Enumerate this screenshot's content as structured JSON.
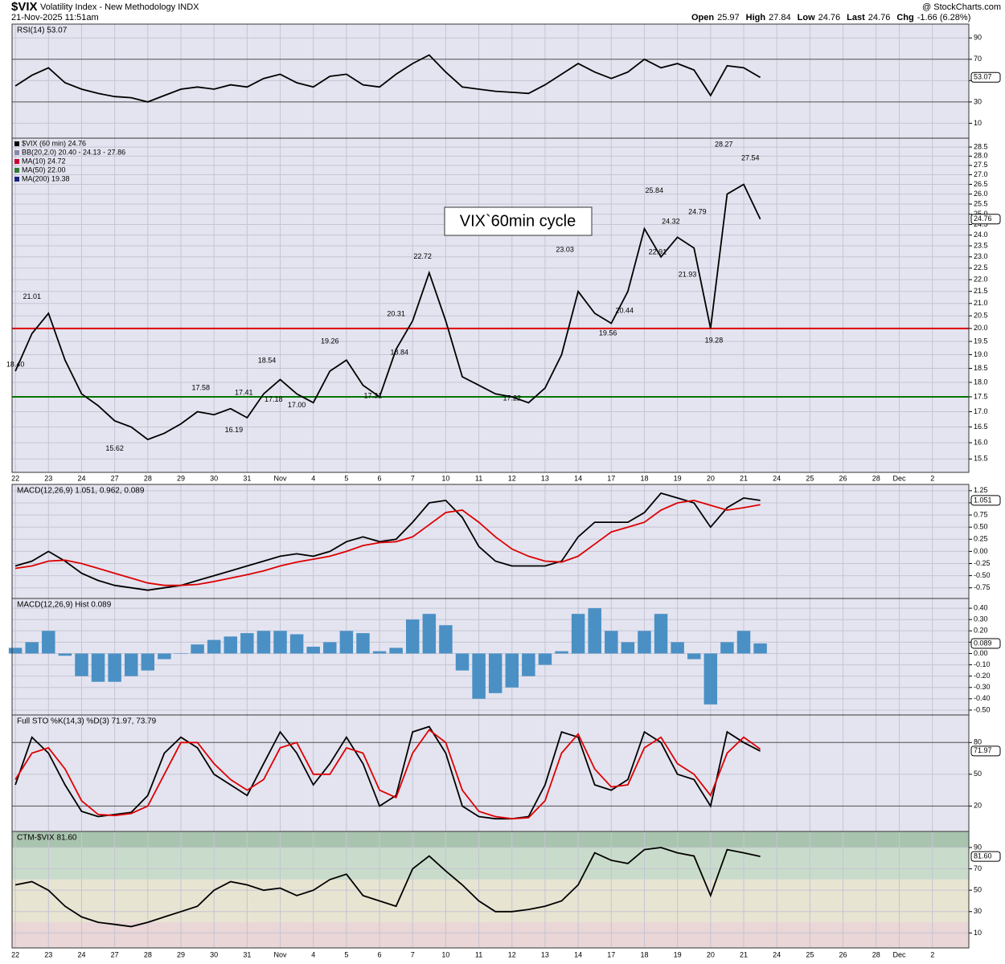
{
  "header": {
    "symbol": "$VIX",
    "name": "Volatility Index - New Methodology INDX",
    "timestamp": "21-Nov-2025 11:51am",
    "source": "@ StockCharts.com",
    "ohlc": [
      {
        "label": "Open",
        "value": "25.97"
      },
      {
        "label": "High",
        "value": "27.84"
      },
      {
        "label": "Low",
        "value": "24.76"
      },
      {
        "label": "Last",
        "value": "24.76"
      },
      {
        "label": "Chg",
        "value": "-1.66 (6.28%)"
      }
    ]
  },
  "chart_data": [
    {
      "type": "line",
      "title": "RSI(14) 53.07",
      "ylim": [
        -4,
        103
      ],
      "yticks": [
        10,
        30,
        50,
        70,
        90
      ],
      "hlines": [
        {
          "value": 70,
          "color": "#555"
        },
        {
          "value": 30,
          "color": "#555"
        }
      ],
      "last_label": {
        "value": 53.07,
        "label": "53.07"
      },
      "series": [
        {
          "color": "#000",
          "values": [
            45,
            55,
            62,
            48,
            42,
            38,
            35,
            34,
            30,
            36,
            42,
            44,
            42,
            46,
            44,
            52,
            56,
            48,
            44,
            54,
            56,
            46,
            44,
            56,
            66,
            74,
            58,
            44,
            42,
            40,
            39,
            38,
            46,
            56,
            66,
            58,
            52,
            58,
            70,
            62,
            66,
            60,
            36,
            64,
            62,
            53
          ]
        }
      ]
    },
    {
      "type": "line",
      "log_scale": true,
      "ylim": [
        15.1,
        29
      ],
      "xlim": [
        -0.1,
        28.8
      ],
      "annotation": "VIX`60min cycle",
      "legend": [
        {
          "text": "$VIX (60 min) 24.76",
          "color": "#000"
        },
        {
          "text": "BB(20,2.0) 20.40 - 24.13 - 27.86",
          "color": "#8888aa"
        },
        {
          "text": "MA(10) 24.72",
          "color": "#cc0033"
        },
        {
          "text": "MA(50) 22.00",
          "color": "#2e7d32"
        },
        {
          "text": "MA(200) 19.38",
          "color": "#1a237e"
        }
      ],
      "last_label": {
        "value": 24.76,
        "label": "24.76"
      },
      "yticks": [
        15.5,
        {
          "value": 16,
          "label": "16.0"
        },
        16.5,
        {
          "value": 17,
          "label": "17.0"
        },
        17.5,
        {
          "value": 18,
          "label": "18.0"
        },
        18.5,
        {
          "value": 19,
          "label": "19.0"
        },
        19.5,
        {
          "value": 20,
          "label": "20.0"
        },
        20.5,
        {
          "value": 21,
          "label": "21.0"
        },
        21.5,
        {
          "value": 22,
          "label": "22.0"
        },
        22.5,
        {
          "value": 23,
          "label": "23.0"
        },
        23.5,
        {
          "value": 24,
          "label": "24.0"
        },
        24.5,
        {
          "value": 25,
          "label": "25.0"
        },
        25.5,
        {
          "value": 26,
          "label": "26.0"
        },
        26.5,
        {
          "value": 27,
          "label": "27.0"
        },
        27.5,
        {
          "value": 28,
          "label": "28.0"
        },
        28.5
      ],
      "xticks": [
        {
          "value": 0,
          "label": "22"
        },
        {
          "value": 1,
          "label": "23"
        },
        {
          "value": 2,
          "label": "24"
        },
        {
          "value": 3,
          "label": "27"
        },
        {
          "value": 4,
          "label": "28"
        },
        {
          "value": 5,
          "label": "29"
        },
        {
          "value": 6,
          "label": "30"
        },
        {
          "value": 7,
          "label": "31"
        },
        {
          "value": 8,
          "label": "Nov"
        },
        {
          "value": 9,
          "label": "4"
        },
        {
          "value": 10,
          "label": "5"
        },
        {
          "value": 11,
          "label": "6"
        },
        {
          "value": 12,
          "label": "7"
        },
        {
          "value": 13,
          "label": "10"
        },
        {
          "value": 14,
          "label": "11"
        },
        {
          "value": 15,
          "label": "12"
        },
        {
          "value": 16,
          "label": "13"
        },
        {
          "value": 17,
          "label": "14"
        },
        {
          "value": 18,
          "label": "17"
        },
        {
          "value": 19,
          "label": "18"
        },
        {
          "value": 20,
          "label": "19"
        },
        {
          "value": 21,
          "label": "20"
        },
        {
          "value": 22,
          "label": "21"
        },
        {
          "value": 23,
          "label": "24"
        },
        {
          "value": 24,
          "label": "25"
        },
        {
          "value": 25,
          "label": "26"
        },
        {
          "value": 26,
          "label": "28"
        },
        {
          "value": 26.7,
          "label": "Dec"
        },
        {
          "value": 27.7,
          "label": "2"
        }
      ],
      "x": [
        0,
        0.5,
        1,
        1.5,
        2,
        2.5,
        3,
        3.5,
        4,
        4.5,
        5,
        5.5,
        6,
        6.5,
        7,
        7.5,
        8,
        8.5,
        9,
        9.5,
        10,
        10.5,
        11,
        11.5,
        12,
        12.5,
        13,
        13.5,
        14,
        14.5,
        15,
        15.5,
        16,
        16.5,
        17,
        17.5,
        18,
        18.5,
        19,
        19.5,
        20,
        20.5,
        21,
        21.5,
        22,
        22.5
      ],
      "hlines": [
        {
          "value": 20,
          "color": "#dd0000"
        },
        {
          "value": 17.5,
          "color": "#007700"
        }
      ],
      "series": [
        {
          "color": "#000",
          "values": [
            18.4,
            19.8,
            20.6,
            18.8,
            17.6,
            17.2,
            16.7,
            16.5,
            16.1,
            16.3,
            16.6,
            17.0,
            16.9,
            17.1,
            16.8,
            17.6,
            18.1,
            17.6,
            17.3,
            18.4,
            18.8,
            17.9,
            17.5,
            19.2,
            20.3,
            22.3,
            20.3,
            18.2,
            17.9,
            17.6,
            17.5,
            17.3,
            17.8,
            19.0,
            21.5,
            20.6,
            20.2,
            21.5,
            24.3,
            23.0,
            23.9,
            23.4,
            20.0,
            26.0,
            26.5,
            24.76
          ]
        }
      ],
      "point_labels": [
        {
          "x": 0.5,
          "y": 21.01,
          "label": "21.01"
        },
        {
          "x": 0,
          "y": 18.4,
          "label": "18.40"
        },
        {
          "x": 3,
          "y": 15.62,
          "label": "15.62"
        },
        {
          "x": 5.6,
          "y": 17.58,
          "label": "17.58"
        },
        {
          "x": 6.6,
          "y": 16.19,
          "label": "16.19"
        },
        {
          "x": 7.6,
          "y": 18.54,
          "label": "18.54"
        },
        {
          "x": 6.9,
          "y": 17.41,
          "label": "17.41"
        },
        {
          "x": 7.8,
          "y": 17.18,
          "label": "17.18"
        },
        {
          "x": 8.5,
          "y": 17.0,
          "label": "17.00"
        },
        {
          "x": 9.5,
          "y": 19.26,
          "label": "19.26"
        },
        {
          "x": 10.8,
          "y": 17.31,
          "label": "17.31"
        },
        {
          "x": 11.5,
          "y": 20.31,
          "label": "20.31"
        },
        {
          "x": 12.3,
          "y": 22.72,
          "label": "22.72"
        },
        {
          "x": 11.6,
          "y": 18.84,
          "label": "18.84"
        },
        {
          "x": 15,
          "y": 17.22,
          "label": "17.22"
        },
        {
          "x": 16.6,
          "y": 23.03,
          "label": "23.03"
        },
        {
          "x": 17.9,
          "y": 19.56,
          "label": "19.56"
        },
        {
          "x": 18.4,
          "y": 20.44,
          "label": "20.44"
        },
        {
          "x": 19.3,
          "y": 25.84,
          "label": "25.84"
        },
        {
          "x": 19.8,
          "y": 24.32,
          "label": "24.32"
        },
        {
          "x": 19.4,
          "y": 22.91,
          "label": "22.91"
        },
        {
          "x": 20.3,
          "y": 21.93,
          "label": "21.93"
        },
        {
          "x": 20.6,
          "y": 24.79,
          "label": "24.79"
        },
        {
          "x": 21.1,
          "y": 19.28,
          "label": "19.28"
        },
        {
          "x": 21.4,
          "y": 28.27,
          "label": "28.27"
        },
        {
          "x": 22.2,
          "y": 27.54,
          "label": "27.54"
        }
      ]
    },
    {
      "type": "line",
      "title": "MACD(12,26,9) 1.051, 0.962, 0.089",
      "ylim": [
        -0.97,
        1.38
      ],
      "last_label": {
        "value": 1.051,
        "label": "1.051"
      },
      "yticks": [
        -0.75,
        -0.25,
        {
          "value": -0.5,
          "label": "-0.50"
        },
        {
          "value": 0,
          "label": "0.00"
        },
        0.25,
        {
          "value": 0.5,
          "label": "0.50"
        },
        0.75,
        {
          "value": 1,
          "label": "1.00"
        },
        1.25
      ],
      "series": [
        {
          "color": "#000",
          "values": [
            -0.3,
            -0.2,
            0.0,
            -0.2,
            -0.45,
            -0.6,
            -0.7,
            -0.75,
            -0.8,
            -0.75,
            -0.7,
            -0.6,
            -0.5,
            -0.4,
            -0.3,
            -0.2,
            -0.1,
            -0.05,
            -0.1,
            0.0,
            0.2,
            0.3,
            0.2,
            0.25,
            0.6,
            1.0,
            1.05,
            0.7,
            0.1,
            -0.2,
            -0.3,
            -0.3,
            -0.3,
            -0.2,
            0.3,
            0.6,
            0.6,
            0.6,
            0.8,
            1.2,
            1.1,
            1.0,
            0.5,
            0.9,
            1.1,
            1.051
          ]
        },
        {
          "color": "#dd0000",
          "values": [
            -0.35,
            -0.3,
            -0.2,
            -0.18,
            -0.25,
            -0.35,
            -0.45,
            -0.55,
            -0.65,
            -0.7,
            -0.7,
            -0.68,
            -0.62,
            -0.55,
            -0.48,
            -0.4,
            -0.3,
            -0.22,
            -0.16,
            -0.1,
            0.0,
            0.12,
            0.18,
            0.2,
            0.3,
            0.55,
            0.8,
            0.85,
            0.6,
            0.3,
            0.05,
            -0.1,
            -0.2,
            -0.22,
            -0.1,
            0.15,
            0.4,
            0.5,
            0.6,
            0.85,
            1.0,
            1.05,
            0.95,
            0.85,
            0.9,
            0.962
          ]
        }
      ]
    },
    {
      "type": "bar",
      "title": "MACD(12,26,9) Hist 0.089",
      "ylim": [
        -0.543,
        0.486
      ],
      "last_label": {
        "value": 0.089,
        "label": "0.089"
      },
      "yticks": [
        {
          "value": 0.4,
          "label": "0.40"
        },
        {
          "value": 0.3,
          "label": "0.30"
        },
        {
          "value": 0.2,
          "label": "0.20"
        },
        {
          "value": 0.1,
          "label": "0.10"
        },
        {
          "value": 0,
          "label": "0.00"
        },
        {
          "value": -0.1,
          "label": "-0.10"
        },
        {
          "value": -0.2,
          "label": "-0.20"
        },
        {
          "value": -0.3,
          "label": "-0.30"
        },
        {
          "value": -0.4,
          "label": "-0.40"
        },
        {
          "value": -0.5,
          "label": "-0.50"
        }
      ],
      "series": [
        {
          "color": "#4a90c4",
          "values": [
            0.05,
            0.1,
            0.2,
            -0.02,
            -0.2,
            -0.25,
            -0.25,
            -0.2,
            -0.15,
            -0.05,
            0.0,
            0.08,
            0.12,
            0.15,
            0.18,
            0.2,
            0.2,
            0.17,
            0.06,
            0.1,
            0.2,
            0.18,
            0.02,
            0.05,
            0.3,
            0.35,
            0.25,
            -0.15,
            -0.4,
            -0.35,
            -0.3,
            -0.2,
            -0.1,
            0.02,
            0.35,
            0.4,
            0.2,
            0.1,
            0.2,
            0.35,
            0.1,
            -0.05,
            -0.45,
            0.1,
            0.2,
            0.089
          ]
        }
      ]
    },
    {
      "type": "line",
      "title": "Full STO %K(14,3) %D(3) 71.97, 73.79",
      "ylim": [
        -4,
        106
      ],
      "last_label": {
        "value": 71.97,
        "label": "71.97"
      },
      "yticks": [
        20,
        50,
        80
      ],
      "hlines": [
        {
          "value": 80,
          "color": "#555"
        },
        {
          "value": 20,
          "color": "#555"
        }
      ],
      "series": [
        {
          "color": "#000",
          "values": [
            40,
            85,
            70,
            40,
            15,
            10,
            12,
            14,
            30,
            70,
            85,
            75,
            50,
            40,
            30,
            60,
            90,
            70,
            40,
            60,
            85,
            60,
            20,
            30,
            90,
            95,
            70,
            20,
            10,
            8,
            8,
            10,
            40,
            90,
            85,
            40,
            35,
            45,
            90,
            80,
            50,
            45,
            20,
            90,
            80,
            71.97
          ]
        },
        {
          "color": "#dd0000",
          "values": [
            45,
            70,
            75,
            55,
            25,
            12,
            11,
            13,
            20,
            50,
            80,
            80,
            60,
            45,
            35,
            45,
            75,
            80,
            50,
            50,
            75,
            70,
            35,
            28,
            70,
            92,
            80,
            35,
            15,
            10,
            8,
            9,
            25,
            70,
            88,
            55,
            38,
            40,
            75,
            85,
            60,
            50,
            30,
            70,
            85,
            73.79
          ]
        }
      ]
    },
    {
      "type": "line",
      "title": "CTM-$VIX 81.60",
      "ylim": [
        -4,
        105
      ],
      "last_label": {
        "value": 81.6,
        "label": "81.60"
      },
      "yticks": [
        10,
        30,
        50,
        70,
        90
      ],
      "bands": [
        {
          "from": 90,
          "to": 105,
          "color": "#a9c4ae"
        },
        {
          "from": 60,
          "to": 90,
          "color": "#c9dccb"
        },
        {
          "from": 20,
          "to": 60,
          "color": "#e8e4d2"
        },
        {
          "from": -4,
          "to": 20,
          "color": "#ead6d6"
        }
      ],
      "series": [
        {
          "color": "#000",
          "values": [
            55,
            58,
            50,
            35,
            25,
            20,
            18,
            16,
            20,
            25,
            30,
            35,
            50,
            58,
            55,
            50,
            52,
            45,
            50,
            60,
            65,
            45,
            40,
            35,
            70,
            82,
            68,
            55,
            40,
            30,
            30,
            32,
            35,
            40,
            55,
            85,
            78,
            75,
            88,
            90,
            85,
            82,
            45,
            88,
            85,
            81.6
          ]
        }
      ]
    }
  ]
}
